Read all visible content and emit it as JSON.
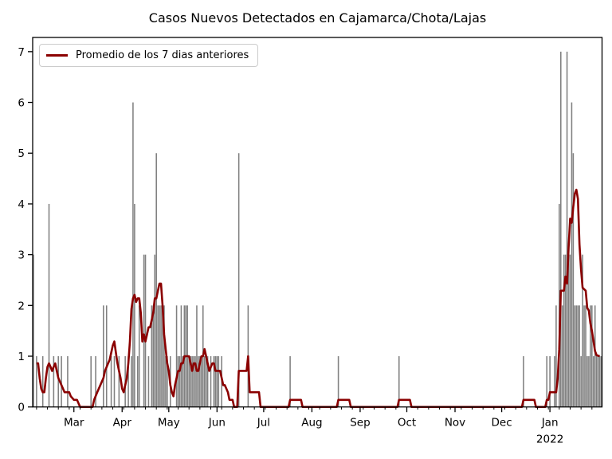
{
  "chart_data": {
    "type": "bar",
    "title": "Casos Nuevos Detectados en Cajamarca/Chota/Lajas",
    "x_axis": {
      "unit": "day",
      "range": [
        -0.5,
        365.5
      ],
      "major_ticks": [
        {
          "label": "Mar",
          "day": 26
        },
        {
          "label": "Apr",
          "day": 57
        },
        {
          "label": "May",
          "day": 87
        },
        {
          "label": "Jun",
          "day": 118
        },
        {
          "label": "Jul",
          "day": 148
        },
        {
          "label": "Aug",
          "day": 179
        },
        {
          "label": "Sep",
          "day": 210
        },
        {
          "label": "Oct",
          "day": 240
        },
        {
          "label": "Nov",
          "day": 271
        },
        {
          "label": "Dec",
          "day": 301
        },
        {
          "label": "Jan",
          "day": 332
        }
      ],
      "year_label": "2022",
      "year_label_day": 332,
      "minor_tick_start": 2,
      "minor_tick_step": 7
    },
    "y_axis": {
      "range": [
        0,
        7.28
      ],
      "ticks": [
        "0",
        "1",
        "2",
        "3",
        "4",
        "5",
        "6",
        "7"
      ]
    },
    "bars": {
      "name": "casos nuevos diarios",
      "color": "#808080",
      "data": [
        [
          0,
          3
        ],
        [
          2,
          1
        ],
        [
          6,
          1
        ],
        [
          10,
          4
        ],
        [
          13,
          1
        ],
        [
          16,
          1
        ],
        [
          18,
          1
        ],
        [
          22,
          1
        ],
        [
          37,
          1
        ],
        [
          40,
          1
        ],
        [
          45,
          2
        ],
        [
          47,
          2
        ],
        [
          50,
          1
        ],
        [
          52,
          1
        ],
        [
          55,
          1
        ],
        [
          59,
          1
        ],
        [
          61,
          1
        ],
        [
          63,
          1
        ],
        [
          64,
          6
        ],
        [
          65,
          4
        ],
        [
          67,
          1
        ],
        [
          68,
          2
        ],
        [
          71,
          3
        ],
        [
          72,
          3
        ],
        [
          74,
          1
        ],
        [
          76,
          2
        ],
        [
          77,
          2
        ],
        [
          78,
          3
        ],
        [
          79,
          5
        ],
        [
          80,
          2
        ],
        [
          81,
          2
        ],
        [
          82,
          2
        ],
        [
          83,
          2
        ],
        [
          84,
          2
        ],
        [
          85,
          1
        ],
        [
          86,
          1
        ],
        [
          88,
          1
        ],
        [
          92,
          2
        ],
        [
          93,
          1
        ],
        [
          94,
          1
        ],
        [
          95,
          2
        ],
        [
          96,
          1
        ],
        [
          97,
          2
        ],
        [
          98,
          2
        ],
        [
          99,
          2
        ],
        [
          100,
          1
        ],
        [
          101,
          1
        ],
        [
          102,
          1
        ],
        [
          103,
          1
        ],
        [
          104,
          1
        ],
        [
          105,
          2
        ],
        [
          106,
          1
        ],
        [
          107,
          1
        ],
        [
          108,
          1
        ],
        [
          109,
          2
        ],
        [
          110,
          1
        ],
        [
          111,
          1
        ],
        [
          112,
          1
        ],
        [
          114,
          1
        ],
        [
          116,
          1
        ],
        [
          117,
          1
        ],
        [
          118,
          1
        ],
        [
          119,
          1
        ],
        [
          121,
          1
        ],
        [
          132,
          5
        ],
        [
          138,
          2
        ],
        [
          165,
          1
        ],
        [
          196,
          1
        ],
        [
          235,
          1
        ],
        [
          315,
          1
        ],
        [
          330,
          1
        ],
        [
          332,
          1
        ],
        [
          335,
          1
        ],
        [
          336,
          2
        ],
        [
          338,
          4
        ],
        [
          339,
          7
        ],
        [
          340,
          2
        ],
        [
          341,
          3
        ],
        [
          342,
          3
        ],
        [
          343,
          7
        ],
        [
          344,
          3
        ],
        [
          345,
          3
        ],
        [
          346,
          6
        ],
        [
          347,
          5
        ],
        [
          348,
          2
        ],
        [
          349,
          2
        ],
        [
          350,
          2
        ],
        [
          351,
          2
        ],
        [
          352,
          1
        ],
        [
          353,
          3
        ],
        [
          354,
          2
        ],
        [
          355,
          2
        ],
        [
          356,
          1
        ],
        [
          357,
          1
        ],
        [
          358,
          2
        ],
        [
          359,
          2
        ],
        [
          360,
          1
        ],
        [
          361,
          2
        ],
        [
          362,
          1
        ],
        [
          363,
          1
        ],
        [
          364,
          1
        ],
        [
          365,
          1
        ]
      ]
    },
    "avg_line": {
      "label": "Promedio de los 7 dias anteriores",
      "color": "#8B0000",
      "width": 2.6,
      "points": [
        [
          2,
          0.86
        ],
        [
          3,
          0.86
        ],
        [
          4,
          0.57
        ],
        [
          5,
          0.36
        ],
        [
          6,
          0.29
        ],
        [
          7,
          0.29
        ],
        [
          8,
          0.57
        ],
        [
          9,
          0.79
        ],
        [
          10,
          0.86
        ],
        [
          11,
          0.79
        ],
        [
          12,
          0.71
        ],
        [
          13,
          0.79
        ],
        [
          14,
          0.86
        ],
        [
          15,
          0.71
        ],
        [
          16,
          0.57
        ],
        [
          17,
          0.5
        ],
        [
          18,
          0.43
        ],
        [
          19,
          0.36
        ],
        [
          20,
          0.29
        ],
        [
          23,
          0.29
        ],
        [
          24,
          0.21
        ],
        [
          26,
          0.14
        ],
        [
          28,
          0.14
        ],
        [
          29,
          0.07
        ],
        [
          30,
          0
        ],
        [
          38,
          0
        ],
        [
          39,
          0.14
        ],
        [
          41,
          0.29
        ],
        [
          43,
          0.43
        ],
        [
          45,
          0.57
        ],
        [
          46,
          0.71
        ],
        [
          48,
          0.86
        ],
        [
          49,
          0.93
        ],
        [
          50,
          1.07
        ],
        [
          51,
          1.21
        ],
        [
          52,
          1.29
        ],
        [
          53,
          1.07
        ],
        [
          54,
          0.86
        ],
        [
          55,
          0.71
        ],
        [
          56,
          0.57
        ],
        [
          57,
          0.36
        ],
        [
          58,
          0.29
        ],
        [
          59,
          0.43
        ],
        [
          60,
          0.57
        ],
        [
          61,
          0.86
        ],
        [
          62,
          1.29
        ],
        [
          63,
          1.93
        ],
        [
          64,
          2.14
        ],
        [
          65,
          2.21
        ],
        [
          66,
          2.07
        ],
        [
          67,
          2.14
        ],
        [
          68,
          2.14
        ],
        [
          69,
          1.86
        ],
        [
          70,
          1.29
        ],
        [
          71,
          1.43
        ],
        [
          72,
          1.29
        ],
        [
          73,
          1.43
        ],
        [
          74,
          1.57
        ],
        [
          75,
          1.57
        ],
        [
          76,
          1.71
        ],
        [
          77,
          1.86
        ],
        [
          78,
          2.14
        ],
        [
          79,
          2.14
        ],
        [
          80,
          2.29
        ],
        [
          81,
          2.43
        ],
        [
          82,
          2.43
        ],
        [
          83,
          2.0
        ],
        [
          84,
          1.43
        ],
        [
          85,
          1.14
        ],
        [
          86,
          0.86
        ],
        [
          87,
          0.71
        ],
        [
          88,
          0.43
        ],
        [
          89,
          0.29
        ],
        [
          90,
          0.21
        ],
        [
          91,
          0.43
        ],
        [
          92,
          0.57
        ],
        [
          93,
          0.71
        ],
        [
          94,
          0.71
        ],
        [
          95,
          0.86
        ],
        [
          96,
          0.86
        ],
        [
          97,
          1.0
        ],
        [
          100,
          1.0
        ],
        [
          101,
          0.86
        ],
        [
          102,
          0.71
        ],
        [
          103,
          0.86
        ],
        [
          104,
          0.86
        ],
        [
          105,
          0.71
        ],
        [
          106,
          0.71
        ],
        [
          107,
          0.86
        ],
        [
          108,
          1.0
        ],
        [
          109,
          1.0
        ],
        [
          110,
          1.14
        ],
        [
          111,
          1.0
        ],
        [
          112,
          0.86
        ],
        [
          113,
          0.71
        ],
        [
          115,
          0.86
        ],
        [
          116,
          0.86
        ],
        [
          117,
          0.71
        ],
        [
          120,
          0.71
        ],
        [
          121,
          0.57
        ],
        [
          122,
          0.43
        ],
        [
          123,
          0.43
        ],
        [
          124,
          0.36
        ],
        [
          125,
          0.29
        ],
        [
          126,
          0.14
        ],
        [
          128,
          0.14
        ],
        [
          129,
          0
        ],
        [
          131,
          0
        ],
        [
          132,
          0.71
        ],
        [
          137,
          0.71
        ],
        [
          138,
          1.0
        ],
        [
          139,
          0.29
        ],
        [
          145,
          0.29
        ],
        [
          146,
          0
        ],
        [
          164,
          0
        ],
        [
          165,
          0.14
        ],
        [
          172,
          0.14
        ],
        [
          173,
          0
        ],
        [
          195,
          0
        ],
        [
          196,
          0.14
        ],
        [
          203,
          0.14
        ],
        [
          204,
          0
        ],
        [
          234,
          0
        ],
        [
          235,
          0.14
        ],
        [
          242,
          0.14
        ],
        [
          243,
          0
        ],
        [
          314,
          0
        ],
        [
          315,
          0.14
        ],
        [
          322,
          0.14
        ],
        [
          323,
          0
        ],
        [
          329,
          0
        ],
        [
          330,
          0.14
        ],
        [
          331,
          0.14
        ],
        [
          332,
          0.29
        ],
        [
          336,
          0.29
        ],
        [
          337,
          0.57
        ],
        [
          338,
          1.14
        ],
        [
          339,
          2.29
        ],
        [
          341,
          2.29
        ],
        [
          342,
          2.57
        ],
        [
          343,
          2.43
        ],
        [
          344,
          3.14
        ],
        [
          345,
          3.71
        ],
        [
          346,
          3.63
        ],
        [
          347,
          3.94
        ],
        [
          348,
          4.2
        ],
        [
          349,
          4.28
        ],
        [
          350,
          4.1
        ],
        [
          351,
          3.2
        ],
        [
          352,
          2.71
        ],
        [
          353,
          2.35
        ],
        [
          355,
          2.29
        ],
        [
          356,
          1.95
        ],
        [
          357,
          1.9
        ],
        [
          358,
          1.65
        ],
        [
          359,
          1.5
        ],
        [
          360,
          1.3
        ],
        [
          361,
          1.1
        ],
        [
          362,
          1.02
        ],
        [
          364,
          1.0
        ]
      ]
    },
    "legend_position": "upper left",
    "grid": false,
    "frame_color": "#000000",
    "background": "#ffffff"
  }
}
